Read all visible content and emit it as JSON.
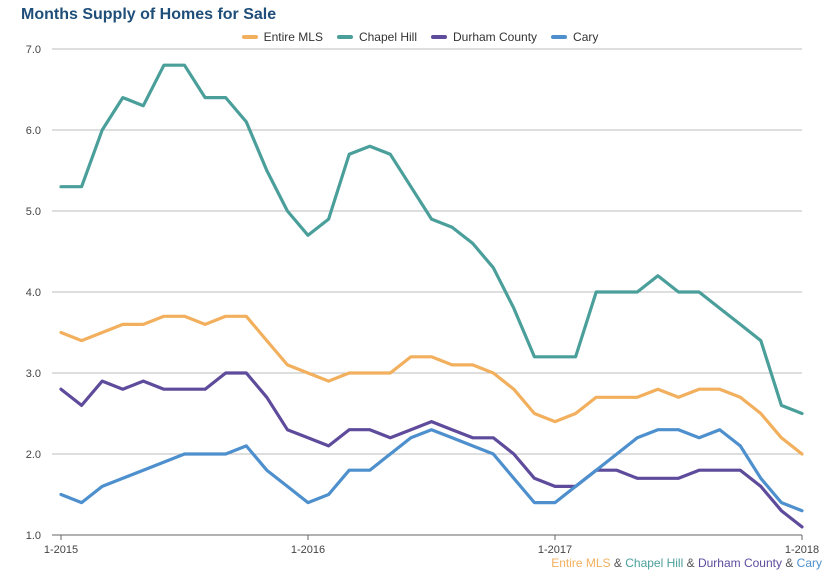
{
  "chart_data": {
    "type": "line",
    "title": "Months Supply of Homes for Sale",
    "xlabel": "",
    "ylabel": "",
    "ylim": [
      1.0,
      7.0
    ],
    "yticks": [
      "1.0",
      "2.0",
      "3.0",
      "4.0",
      "5.0",
      "6.0",
      "7.0"
    ],
    "xticks": [
      {
        "index": 0,
        "label": "1-2015"
      },
      {
        "index": 12,
        "label": "1-2016"
      },
      {
        "index": 24,
        "label": "1-2017"
      },
      {
        "index": 36,
        "label": "1-2018"
      }
    ],
    "grid": true,
    "legend": "top-center",
    "series": [
      {
        "name": "Entire MLS",
        "color": "#f2b05e",
        "values": [
          3.5,
          3.4,
          3.5,
          3.6,
          3.6,
          3.7,
          3.7,
          3.6,
          3.7,
          3.7,
          3.4,
          3.1,
          3.0,
          2.9,
          3.0,
          3.0,
          3.0,
          3.2,
          3.2,
          3.1,
          3.1,
          3.0,
          2.8,
          2.5,
          2.4,
          2.5,
          2.7,
          2.7,
          2.7,
          2.8,
          2.7,
          2.8,
          2.8,
          2.7,
          2.5,
          2.2,
          2.0
        ]
      },
      {
        "name": "Chapel Hill",
        "color": "#4a9f9b",
        "values": [
          5.3,
          5.3,
          6.0,
          6.4,
          6.3,
          6.8,
          6.8,
          6.4,
          6.4,
          6.1,
          5.5,
          5.0,
          4.7,
          4.9,
          5.7,
          5.8,
          5.7,
          5.3,
          4.9,
          4.8,
          4.6,
          4.3,
          3.8,
          3.2,
          3.2,
          3.2,
          4.0,
          4.0,
          4.0,
          4.2,
          4.0,
          4.0,
          3.8,
          3.6,
          3.4,
          2.6,
          2.5
        ]
      },
      {
        "name": "Durham County",
        "color": "#5e4b9c",
        "values": [
          2.8,
          2.6,
          2.9,
          2.8,
          2.9,
          2.8,
          2.8,
          2.8,
          3.0,
          3.0,
          2.7,
          2.3,
          2.2,
          2.1,
          2.3,
          2.3,
          2.2,
          2.3,
          2.4,
          2.3,
          2.2,
          2.2,
          2.0,
          1.7,
          1.6,
          1.6,
          1.8,
          1.8,
          1.7,
          1.7,
          1.7,
          1.8,
          1.8,
          1.8,
          1.6,
          1.3,
          1.1
        ]
      },
      {
        "name": "Cary",
        "color": "#4d90cd",
        "values": [
          1.5,
          1.4,
          1.6,
          1.7,
          1.8,
          1.9,
          2.0,
          2.0,
          2.0,
          2.1,
          1.8,
          1.6,
          1.4,
          1.5,
          1.8,
          1.8,
          2.0,
          2.2,
          2.3,
          2.2,
          2.1,
          2.0,
          1.7,
          1.4,
          1.4,
          1.6,
          1.8,
          2.0,
          2.2,
          2.3,
          2.3,
          2.2,
          2.3,
          2.1,
          1.7,
          1.4,
          1.3
        ]
      }
    ]
  },
  "footer": {
    "parts": [
      {
        "text": "Entire MLS",
        "color": "#f2b05e"
      },
      {
        "text": " & ",
        "color": "#555555"
      },
      {
        "text": "Chapel Hill",
        "color": "#4a9f9b"
      },
      {
        "text": " & ",
        "color": "#555555"
      },
      {
        "text": "Durham County",
        "color": "#5e4b9c"
      },
      {
        "text": " & ",
        "color": "#555555"
      },
      {
        "text": "Cary",
        "color": "#4d90cd"
      }
    ]
  }
}
